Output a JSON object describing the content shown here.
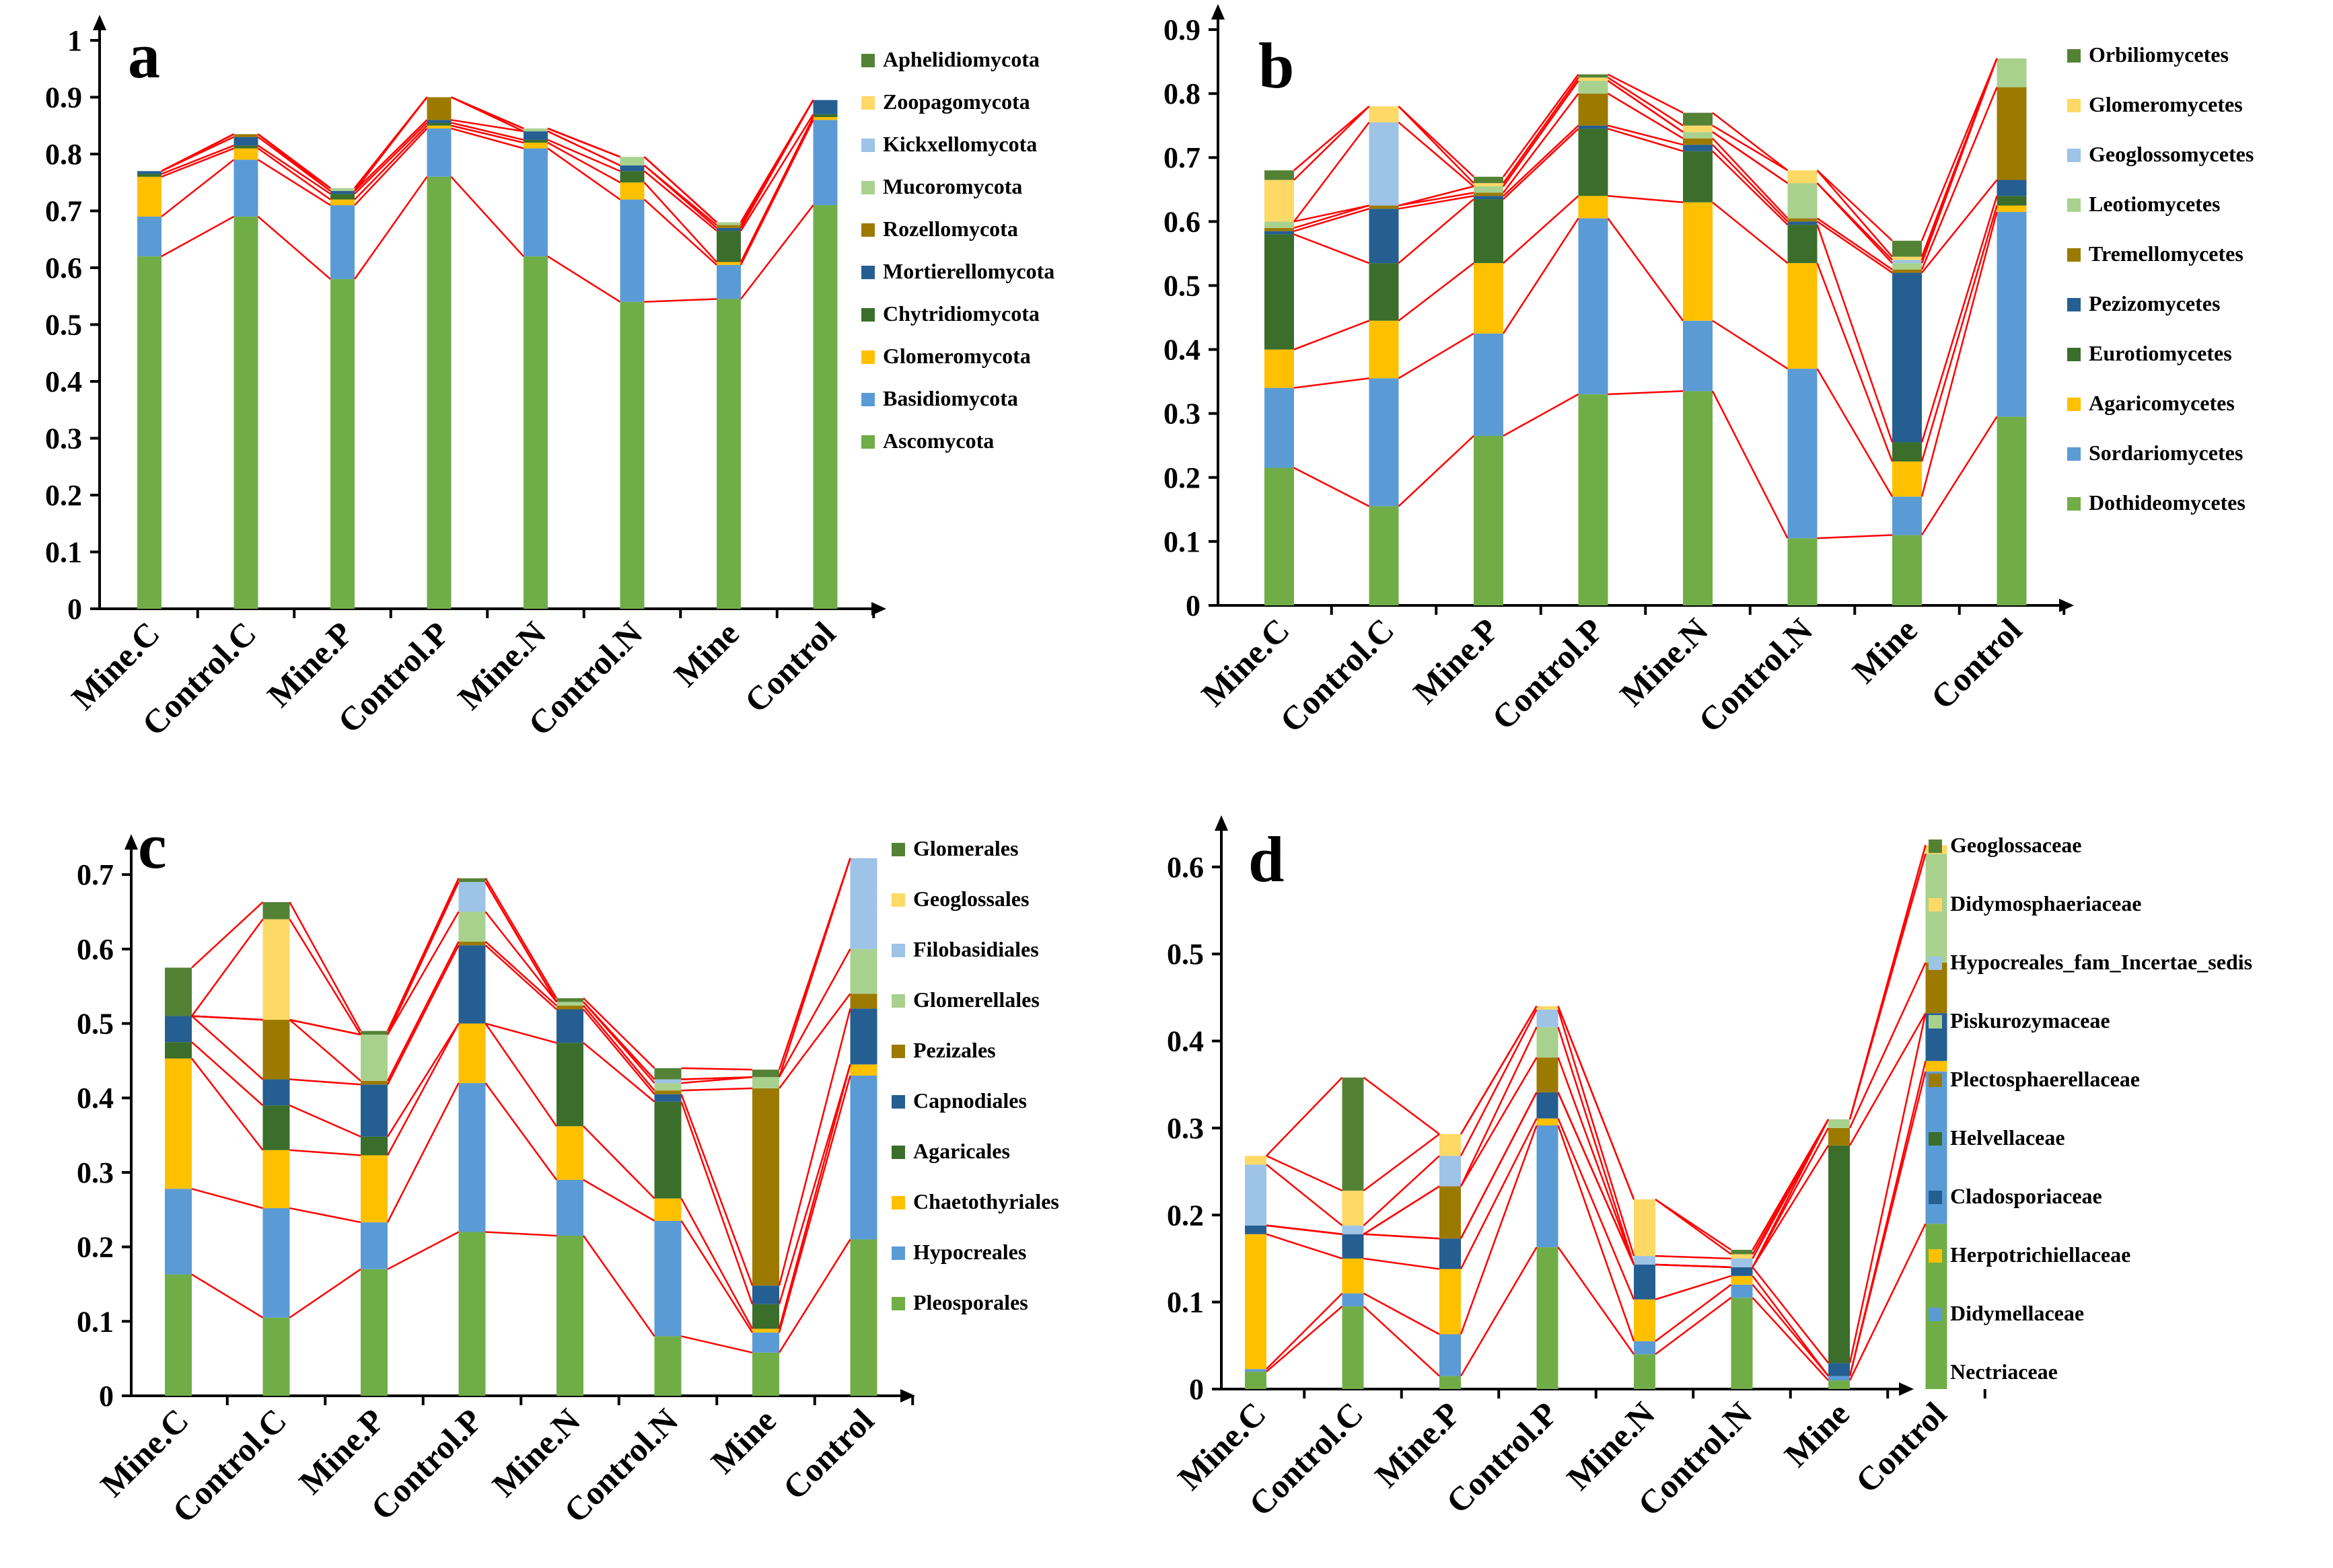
{
  "chart_data": [
    {
      "type": "bar",
      "panel": "a",
      "categories": [
        "Mine.C",
        "Control.C",
        "Mine.P",
        "Control.P",
        "Mine.N",
        "Control.N",
        "Mine",
        "Control"
      ],
      "ylim": [
        0,
        1
      ],
      "yticks": [
        "0",
        "0.1",
        "0.2",
        "0.3",
        "0.4",
        "0.5",
        "0.6",
        "0.7",
        "0.8",
        "0.9",
        "1"
      ],
      "series": [
        {
          "name": "Ascomycota",
          "color": "#70AD47",
          "values": [
            0.62,
            0.69,
            0.58,
            0.76,
            0.62,
            0.54,
            0.545,
            0.71
          ]
        },
        {
          "name": "Basidiomycota",
          "color": "#5B9BD5",
          "values": [
            0.07,
            0.1,
            0.13,
            0.085,
            0.19,
            0.18,
            0.06,
            0.15
          ]
        },
        {
          "name": "Glomeromycota",
          "color": "#FFC000",
          "values": [
            0.07,
            0.02,
            0.01,
            0.005,
            0.01,
            0.03,
            0.005,
            0.005
          ]
        },
        {
          "name": "Chytridiomycota",
          "color": "#3A6E2A",
          "values": [
            0.005,
            0.005,
            0.01,
            0.005,
            0.005,
            0.02,
            0.055,
            0.005
          ]
        },
        {
          "name": "Mortierellomycota",
          "color": "#255E91",
          "values": [
            0.005,
            0.015,
            0.005,
            0.005,
            0.015,
            0.01,
            0.005,
            0.025
          ]
        },
        {
          "name": "Rozellomycota",
          "color": "#9C7A00",
          "values": [
            0.0,
            0.005,
            0.0,
            0.04,
            0.0,
            0.0,
            0.005,
            0.0
          ]
        },
        {
          "name": "Mucoromycota",
          "color": "#A9D18E",
          "values": [
            0.0,
            0.0,
            0.005,
            0.0,
            0.005,
            0.015,
            0.005,
            0.0
          ]
        },
        {
          "name": "Kickxellomycota",
          "color": "#9DC3E6",
          "values": [
            0.0,
            0.0,
            0.0,
            0.0,
            0.0,
            0.0,
            0.0,
            0.0
          ]
        },
        {
          "name": "Zoopagomycota",
          "color": "#FFD966",
          "values": [
            0.0,
            0.0,
            0.0,
            0.0,
            0.0,
            0.0,
            0.0,
            0.0
          ]
        },
        {
          "name": "Aphelidiomycota",
          "color": "#548235",
          "values": [
            0.0,
            0.0,
            0.0,
            0.0,
            0.0,
            0.0,
            0.0,
            0.0
          ]
        }
      ]
    },
    {
      "type": "bar",
      "panel": "b",
      "categories": [
        "Mine.C",
        "Control.C",
        "Mine.P",
        "Control.P",
        "Mine.N",
        "Control.N",
        "Mine",
        "Control"
      ],
      "ylim": [
        0,
        0.9
      ],
      "yticks": [
        "0",
        "0.1",
        "0.2",
        "0.3",
        "0.4",
        "0.5",
        "0.6",
        "0.7",
        "0.8",
        "0.9"
      ],
      "series": [
        {
          "name": "Dothideomycetes",
          "color": "#70AD47",
          "values": [
            0.215,
            0.155,
            0.265,
            0.33,
            0.335,
            0.105,
            0.11,
            0.295
          ]
        },
        {
          "name": "Sordariomycetes",
          "color": "#5B9BD5",
          "values": [
            0.125,
            0.2,
            0.16,
            0.275,
            0.11,
            0.265,
            0.06,
            0.32
          ]
        },
        {
          "name": "Agaricomycetes",
          "color": "#FFC000",
          "values": [
            0.06,
            0.09,
            0.11,
            0.035,
            0.185,
            0.165,
            0.055,
            0.01
          ]
        },
        {
          "name": "Eurotiomycetes",
          "color": "#3A6E2A",
          "values": [
            0.18,
            0.09,
            0.1,
            0.105,
            0.08,
            0.06,
            0.03,
            0.015
          ]
        },
        {
          "name": "Pezizomycetes",
          "color": "#255E91",
          "values": [
            0.005,
            0.085,
            0.005,
            0.005,
            0.01,
            0.005,
            0.265,
            0.025
          ]
        },
        {
          "name": "Tremellomycetes",
          "color": "#9C7A00",
          "values": [
            0.005,
            0.005,
            0.005,
            0.05,
            0.01,
            0.005,
            0.005,
            0.145
          ]
        },
        {
          "name": "Leotiomycetes",
          "color": "#A9D18E",
          "values": [
            0.01,
            0.0,
            0.01,
            0.02,
            0.01,
            0.055,
            0.01,
            0.045
          ]
        },
        {
          "name": "Geoglossomycetes",
          "color": "#9DC3E6",
          "values": [
            0.0,
            0.13,
            0.0,
            0.0,
            0.0,
            0.0,
            0.005,
            0.0
          ]
        },
        {
          "name": "Glomeromycetes",
          "color": "#FFD966",
          "values": [
            0.065,
            0.025,
            0.005,
            0.005,
            0.01,
            0.02,
            0.005,
            0.0
          ]
        },
        {
          "name": "Orbiliomycetes",
          "color": "#548235",
          "values": [
            0.015,
            0.0,
            0.01,
            0.005,
            0.02,
            0.0,
            0.025,
            0.0
          ]
        }
      ]
    },
    {
      "type": "bar",
      "panel": "c",
      "categories": [
        "Mine.C",
        "Control.C",
        "Mine.P",
        "Control.P",
        "Mine.N",
        "Control.N",
        "Mine",
        "Control"
      ],
      "ylim": [
        0,
        0.72
      ],
      "yticks": [
        "0",
        "0.1",
        "0.2",
        "0.3",
        "0.4",
        "0.5",
        "0.6",
        "0.7"
      ],
      "series": [
        {
          "name": "Pleosporales",
          "color": "#70AD47",
          "values": [
            0.163,
            0.105,
            0.17,
            0.22,
            0.215,
            0.08,
            0.058,
            0.21
          ]
        },
        {
          "name": "Hypocreales",
          "color": "#5B9BD5",
          "values": [
            0.115,
            0.147,
            0.063,
            0.2,
            0.075,
            0.155,
            0.027,
            0.22
          ]
        },
        {
          "name": "Chaetothyriales",
          "color": "#FFC000",
          "values": [
            0.175,
            0.078,
            0.09,
            0.08,
            0.072,
            0.03,
            0.005,
            0.015
          ]
        },
        {
          "name": "Agaricales",
          "color": "#3A6E2A",
          "values": [
            0.022,
            0.06,
            0.025,
            0.0,
            0.112,
            0.13,
            0.033,
            0.0
          ]
        },
        {
          "name": "Capnodiales",
          "color": "#255E91",
          "values": [
            0.035,
            0.035,
            0.07,
            0.105,
            0.045,
            0.01,
            0.025,
            0.075
          ]
        },
        {
          "name": "Pezizales",
          "color": "#9C7A00",
          "values": [
            0.0,
            0.08,
            0.005,
            0.005,
            0.005,
            0.005,
            0.265,
            0.02
          ]
        },
        {
          "name": "Glomerellales",
          "color": "#A9D18E",
          "values": [
            0.0,
            0.0,
            0.062,
            0.04,
            0.005,
            0.01,
            0.015,
            0.06
          ]
        },
        {
          "name": "Filobasidiales",
          "color": "#9DC3E6",
          "values": [
            0.0,
            0.0,
            0.0,
            0.04,
            0.0,
            0.005,
            0.0,
            0.122
          ]
        },
        {
          "name": "Geoglossales",
          "color": "#FFD966",
          "values": [
            0.0,
            0.135,
            0.0,
            0.0,
            0.0,
            0.0,
            0.0,
            0.0
          ]
        },
        {
          "name": "Glomerales",
          "color": "#548235",
          "values": [
            0.065,
            0.023,
            0.005,
            0.005,
            0.005,
            0.015,
            0.01,
            0.0
          ]
        }
      ]
    },
    {
      "type": "bar",
      "panel": "d",
      "categories": [
        "Mine.C",
        "Control.C",
        "Mine.P",
        "Control.P",
        "Mine.N",
        "Control.N",
        "Mine",
        "Control"
      ],
      "ylim": [
        0,
        0.63
      ],
      "yticks": [
        "0",
        "0.1",
        "0.2",
        "0.3",
        "0.4",
        "0.5",
        "0.6"
      ],
      "series": [
        {
          "name": "Nectriaceae",
          "color": "#70AD47",
          "values": [
            0.02,
            0.095,
            0.015,
            0.163,
            0.04,
            0.105,
            0.01,
            0.19
          ]
        },
        {
          "name": "Didymellaceae",
          "color": "#5B9BD5",
          "values": [
            0.003,
            0.015,
            0.048,
            0.14,
            0.015,
            0.015,
            0.005,
            0.175
          ]
        },
        {
          "name": "Herpotrichiellaceae",
          "color": "#FFC000",
          "values": [
            0.155,
            0.04,
            0.075,
            0.008,
            0.048,
            0.01,
            0.0,
            0.012
          ]
        },
        {
          "name": "Cladosporiaceae",
          "color": "#255E91",
          "values": [
            0.01,
            0.028,
            0.035,
            0.03,
            0.04,
            0.01,
            0.015,
            0.055
          ]
        },
        {
          "name": "Helvellaceae",
          "color": "#3A6E2A",
          "values": [
            0.0,
            0.0,
            0.0,
            0.0,
            0.0,
            0.0,
            0.25,
            0.0
          ]
        },
        {
          "name": "Plectosphaerellaceae",
          "color": "#9C7A00",
          "values": [
            0.0,
            0.0,
            0.06,
            0.04,
            0.0,
            0.0,
            0.02,
            0.058
          ]
        },
        {
          "name": "Piskurozymaceae",
          "color": "#A9D18E",
          "values": [
            0.0,
            0.0,
            0.0,
            0.035,
            0.0,
            0.0,
            0.01,
            0.125
          ]
        },
        {
          "name": "Hypocreales_fam_Incertae_sedis",
          "color": "#9DC3E6",
          "values": [
            0.07,
            0.01,
            0.035,
            0.02,
            0.01,
            0.01,
            0.0,
            0.0
          ]
        },
        {
          "name": "Didymosphaeriaceae",
          "color": "#FFD966",
          "values": [
            0.01,
            0.04,
            0.025,
            0.004,
            0.065,
            0.005,
            0.0,
            0.01
          ]
        },
        {
          "name": "Geoglossaceae",
          "color": "#548235",
          "values": [
            0.0,
            0.13,
            0.0,
            0.0,
            0.0,
            0.005,
            0.0,
            0.0
          ]
        }
      ]
    }
  ]
}
